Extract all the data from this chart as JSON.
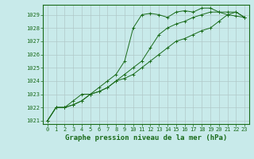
{
  "title": "Graphe pression niveau de la mer (hPa)",
  "bg_color": "#c8eaea",
  "grid_color": "#b0c8c8",
  "line_color": "#1a6b1a",
  "marker_color": "#1a6b1a",
  "xlim": [
    -0.5,
    23.5
  ],
  "ylim": [
    1020.75,
    1029.75
  ],
  "xticks": [
    0,
    1,
    2,
    3,
    4,
    5,
    6,
    7,
    8,
    9,
    10,
    11,
    12,
    13,
    14,
    15,
    16,
    17,
    18,
    19,
    20,
    21,
    22,
    23
  ],
  "yticks": [
    1021,
    1022,
    1023,
    1024,
    1025,
    1026,
    1027,
    1028,
    1029
  ],
  "series": [
    [
      1021.0,
      1022.0,
      1022.0,
      1022.5,
      1023.0,
      1023.0,
      1023.5,
      1024.0,
      1024.5,
      1025.5,
      1028.0,
      1029.0,
      1029.1,
      1029.0,
      1028.8,
      1029.2,
      1029.3,
      1029.2,
      1029.5,
      1029.5,
      1029.2,
      1029.2,
      1029.2,
      1028.8
    ],
    [
      1021.0,
      1022.0,
      1022.0,
      1022.2,
      1022.5,
      1023.0,
      1023.2,
      1023.5,
      1024.0,
      1024.5,
      1025.0,
      1025.5,
      1026.5,
      1027.5,
      1028.0,
      1028.3,
      1028.5,
      1028.8,
      1029.0,
      1029.2,
      1029.2,
      1029.0,
      1028.9,
      1028.8
    ],
    [
      1021.0,
      1022.0,
      1022.0,
      1022.2,
      1022.5,
      1023.0,
      1023.2,
      1023.5,
      1024.0,
      1024.2,
      1024.5,
      1025.0,
      1025.5,
      1026.0,
      1026.5,
      1027.0,
      1027.2,
      1027.5,
      1027.8,
      1028.0,
      1028.5,
      1029.0,
      1029.2,
      1028.8
    ]
  ],
  "xlabel_fontsize": 6.5,
  "tick_fontsize": 5.0,
  "linewidth": 0.7,
  "markersize": 2.5
}
